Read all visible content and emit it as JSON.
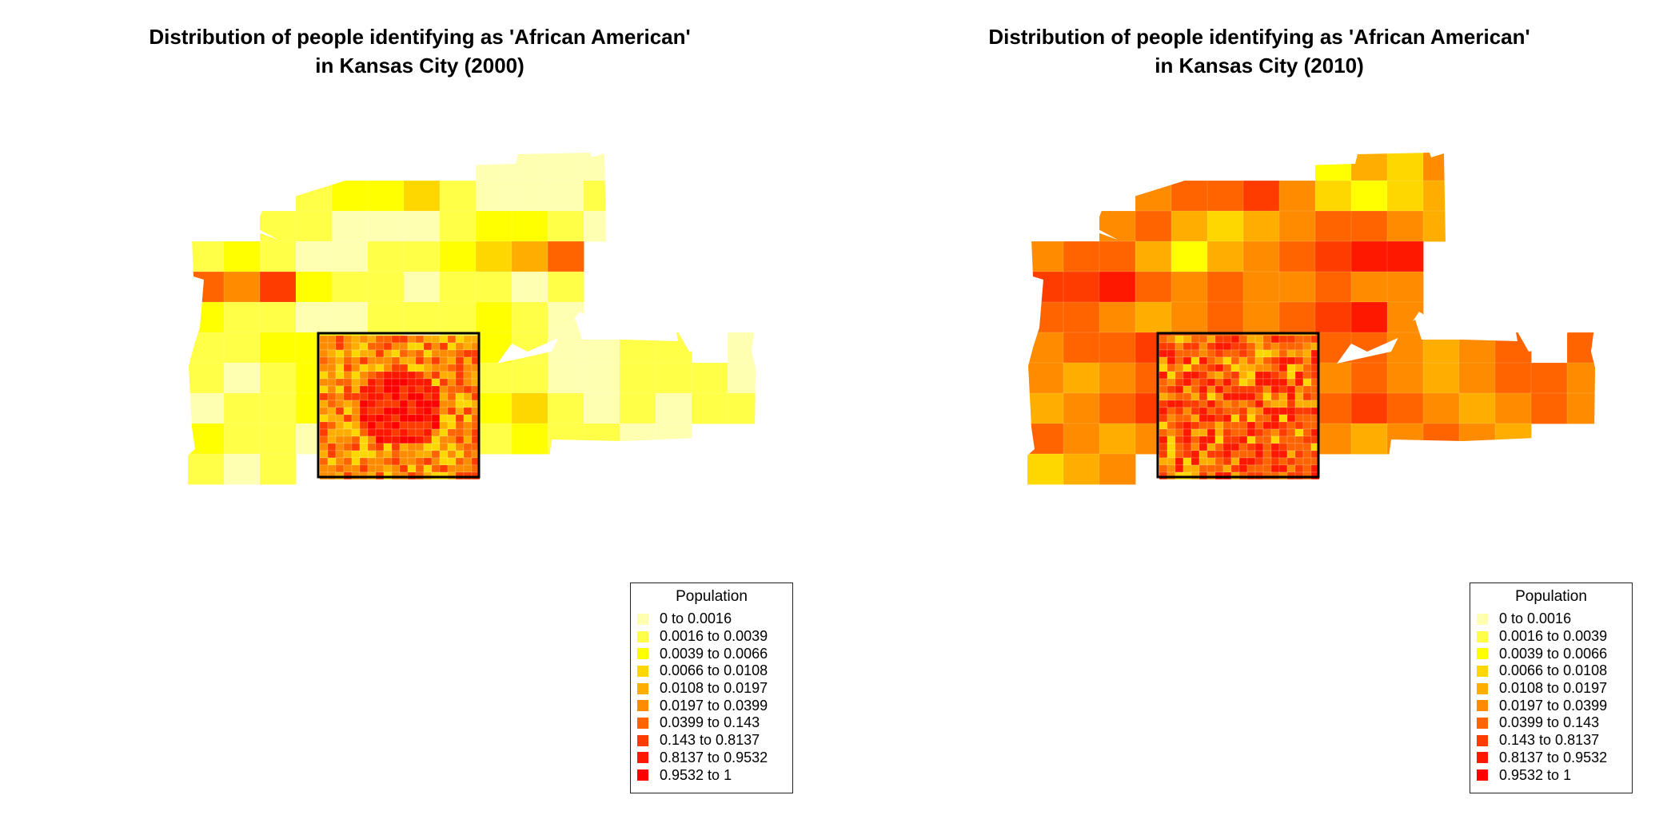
{
  "maps": [
    {
      "title_line1": "Distribution of people identifying as 'African American'",
      "title_line2": "in Kansas City (2000)",
      "legend_title": "Population",
      "classes": [
        0,
        0,
        0,
        0,
        1,
        2,
        2,
        3,
        1,
        0,
        0,
        0,
        1,
        1,
        1,
        0,
        0,
        0,
        1,
        2,
        2,
        1,
        0,
        1,
        2,
        1,
        0,
        0,
        1,
        1,
        2,
        3,
        4,
        6,
        6,
        5,
        7,
        2,
        1,
        1,
        0,
        1,
        1,
        0,
        1,
        2,
        1,
        1,
        0,
        0,
        1,
        1,
        1,
        2,
        1,
        0,
        1,
        1,
        2,
        2,
        2,
        1,
        0,
        1,
        2,
        1,
        0,
        0,
        1,
        1,
        0,
        1,
        0,
        1,
        2,
        1,
        1,
        0,
        0,
        1,
        1,
        0,
        0,
        1,
        1,
        1,
        0,
        0,
        1,
        1,
        2,
        1,
        0,
        0,
        1,
        2,
        3,
        1,
        0,
        1,
        0,
        1,
        1,
        2,
        1,
        1,
        0,
        0,
        1,
        1,
        0,
        1,
        2,
        1,
        1,
        0,
        0,
        1,
        0,
        1
      ]
    },
    {
      "title_line1": "Distribution of people identifying as 'African American'",
      "title_line2": "in Kansas City (2010)",
      "legend_title": "Population",
      "classes": [
        2,
        4,
        3,
        5,
        5,
        6,
        6,
        7,
        5,
        3,
        2,
        3,
        4,
        5,
        6,
        4,
        3,
        4,
        5,
        6,
        6,
        5,
        4,
        5,
        6,
        6,
        4,
        2,
        4,
        5,
        6,
        7,
        8,
        8,
        7,
        7,
        8,
        6,
        5,
        6,
        5,
        5,
        6,
        5,
        5,
        6,
        6,
        5,
        4,
        5,
        6,
        5,
        6,
        7,
        8,
        5,
        5,
        6,
        6,
        7,
        6,
        6,
        5,
        4,
        6,
        6,
        5,
        4,
        5,
        6,
        6,
        5,
        4,
        5,
        6,
        5,
        5,
        6,
        4,
        5,
        6,
        5,
        4,
        5,
        6,
        6,
        5,
        4,
        5,
        6,
        7,
        6,
        5,
        4,
        5,
        6,
        7,
        6,
        5,
        4,
        5,
        6,
        5,
        6,
        5,
        4,
        5,
        6,
        5,
        4,
        6,
        5,
        4,
        5,
        6,
        5,
        4,
        3,
        4,
        5
      ]
    }
  ],
  "legend": {
    "items": [
      {
        "label": "0 to 0.0016",
        "color": "#FFFFB2"
      },
      {
        "label": "0.0016 to 0.0039",
        "color": "#FFFF47"
      },
      {
        "label": "0.0039 to 0.0066",
        "color": "#FFFF00"
      },
      {
        "label": "0.0066 to 0.0108",
        "color": "#FFD700"
      },
      {
        "label": "0.0108 to 0.0197",
        "color": "#FFAE00"
      },
      {
        "label": "0.0197 to 0.0399",
        "color": "#FF8C00"
      },
      {
        "label": "0.0399 to 0.143",
        "color": "#FF6400"
      },
      {
        "label": "0.143 to 0.8137",
        "color": "#FF3C00"
      },
      {
        "label": "0.8137 to 0.9532",
        "color": "#FF1800"
      },
      {
        "label": "0.9532 to 1",
        "color": "#FF0000"
      }
    ]
  }
}
